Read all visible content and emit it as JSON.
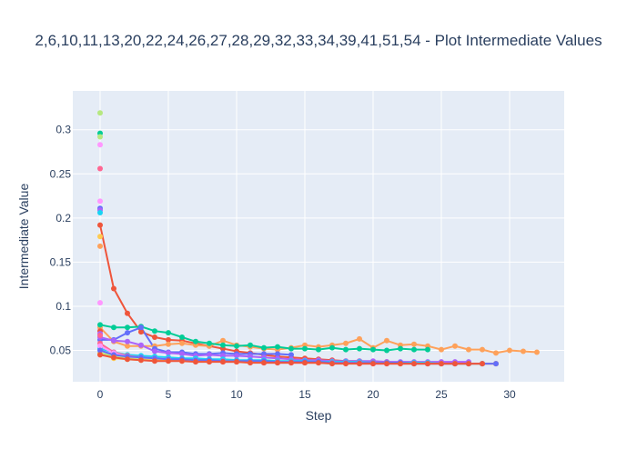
{
  "chart_data": {
    "type": "line",
    "title": "2,6,10,11,13,20,22,24,26,27,28,29,32,33,34,39,41,51,54 - Plot Intermediate Values",
    "xlabel": "Step",
    "ylabel": "Intermediate Value",
    "xlim": [
      -2.0,
      34.0
    ],
    "ylim": [
      0.0145,
      0.344
    ],
    "xticks": [
      0,
      5,
      10,
      15,
      20,
      25,
      30
    ],
    "yticks": [
      0.05,
      0.1,
      0.15,
      0.2,
      0.25,
      0.3
    ],
    "grid": true,
    "legend": "none",
    "series": [
      {
        "color": "#ef553b",
        "x": [
          0,
          1,
          2,
          3,
          4,
          5,
          6,
          7,
          8,
          9,
          10,
          11,
          12,
          13,
          14,
          15,
          16,
          17,
          18,
          19,
          20,
          21,
          22,
          23,
          24,
          25,
          26,
          27,
          28,
          29
        ],
        "y": [
          0.192,
          0.12,
          0.092,
          0.071,
          0.065,
          0.062,
          0.061,
          0.058,
          0.055,
          0.052,
          0.049,
          0.047,
          0.045,
          0.043,
          0.042,
          0.041,
          0.04,
          0.039,
          0.038,
          0.038,
          0.037,
          0.037,
          0.036,
          0.036,
          0.036,
          0.035,
          0.035,
          0.035,
          0.035,
          0.035
        ]
      },
      {
        "color": "#fea15a",
        "x": [
          0,
          1,
          2,
          3,
          4,
          5,
          6,
          7,
          8,
          9,
          10,
          11,
          12,
          13,
          14,
          15,
          16,
          17,
          18,
          19,
          20,
          21,
          22,
          23,
          24,
          25,
          26,
          27,
          28,
          29,
          30,
          31,
          32
        ],
        "y": [
          0.076,
          0.06,
          0.055,
          0.055,
          0.055,
          0.057,
          0.058,
          0.056,
          0.055,
          0.061,
          0.056,
          0.054,
          0.052,
          0.051,
          0.053,
          0.056,
          0.054,
          0.056,
          0.058,
          0.063,
          0.053,
          0.061,
          0.056,
          0.057,
          0.055,
          0.051,
          0.055,
          0.051,
          0.051,
          0.047,
          0.05,
          0.049,
          0.048
        ]
      },
      {
        "color": "#00cc96",
        "x": [
          0,
          1,
          2,
          3,
          4,
          5,
          6,
          7,
          8,
          9,
          10,
          11,
          12,
          13,
          14,
          15,
          16,
          17,
          18,
          19,
          20,
          21,
          22,
          23,
          24
        ],
        "y": [
          0.079,
          0.076,
          0.076,
          0.077,
          0.072,
          0.07,
          0.065,
          0.06,
          0.058,
          0.056,
          0.055,
          0.056,
          0.053,
          0.054,
          0.052,
          0.052,
          0.051,
          0.053,
          0.051,
          0.052,
          0.051,
          0.05,
          0.052,
          0.051,
          0.051
        ]
      },
      {
        "color": "#636efa",
        "x": [
          0,
          1,
          2,
          3,
          4,
          5,
          6,
          7,
          8,
          9,
          10,
          11,
          12,
          13,
          14
        ],
        "y": [
          0.062,
          0.062,
          0.07,
          0.076,
          0.052,
          0.048,
          0.048,
          0.046,
          0.046,
          0.047,
          0.046,
          0.046,
          0.046,
          0.046,
          0.045
        ]
      },
      {
        "color": "#ab63fa",
        "x": [
          0,
          1,
          2,
          3,
          4,
          5,
          6,
          7,
          8,
          9,
          10,
          11,
          12,
          13,
          14,
          15,
          16,
          17,
          18,
          19,
          20,
          21,
          22,
          23,
          24,
          25,
          26,
          27
        ],
        "y": [
          0.065,
          0.061,
          0.06,
          0.056,
          0.049,
          0.047,
          0.046,
          0.044,
          0.045,
          0.044,
          0.044,
          0.043,
          0.042,
          0.041,
          0.04,
          0.039,
          0.039,
          0.038,
          0.038,
          0.038,
          0.038,
          0.037,
          0.037,
          0.037,
          0.037,
          0.037,
          0.037,
          0.037
        ]
      },
      {
        "color": "#19d3f3",
        "x": [
          0,
          1,
          2,
          3,
          4,
          5,
          6,
          7,
          8,
          9,
          10,
          11,
          12,
          13,
          14,
          15,
          16,
          17,
          18,
          19,
          20,
          21,
          22,
          23,
          24,
          25,
          26,
          27,
          28
        ],
        "y": [
          0.052,
          0.048,
          0.045,
          0.044,
          0.043,
          0.042,
          0.041,
          0.041,
          0.04,
          0.04,
          0.039,
          0.039,
          0.039,
          0.038,
          0.038,
          0.038,
          0.037,
          0.037,
          0.037,
          0.037,
          0.036,
          0.036,
          0.036,
          0.036,
          0.036,
          0.035,
          0.035,
          0.035,
          0.035
        ]
      },
      {
        "color": "#ff6692",
        "x": [
          0,
          1,
          2,
          3,
          4,
          5,
          6,
          7,
          8,
          9,
          10,
          11,
          12,
          13,
          14,
          15,
          16,
          17,
          18,
          19,
          20,
          21,
          22,
          23,
          24,
          25,
          26,
          27
        ],
        "y": [
          0.058,
          0.048,
          0.044,
          0.042,
          0.041,
          0.04,
          0.039,
          0.038,
          0.038,
          0.037,
          0.037,
          0.037,
          0.036,
          0.036,
          0.036,
          0.036,
          0.036,
          0.036,
          0.036,
          0.035,
          0.035,
          0.035,
          0.035,
          0.035,
          0.035,
          0.035,
          0.035,
          0.035
        ]
      },
      {
        "color": "#b6e880",
        "x": [
          0,
          1,
          2,
          3,
          4,
          5,
          6,
          7,
          8,
          9,
          10,
          11,
          12,
          13,
          14,
          15,
          16,
          17,
          18,
          19,
          20,
          21,
          22,
          23,
          24,
          25,
          26,
          27,
          28
        ],
        "y": [
          0.047,
          0.044,
          0.042,
          0.041,
          0.04,
          0.04,
          0.039,
          0.039,
          0.038,
          0.038,
          0.038,
          0.037,
          0.037,
          0.037,
          0.037,
          0.036,
          0.036,
          0.036,
          0.036,
          0.036,
          0.036,
          0.035,
          0.035,
          0.035,
          0.035,
          0.035,
          0.035,
          0.035,
          0.035
        ]
      },
      {
        "color": "#ff97ff",
        "x": [
          0,
          1,
          2,
          3,
          4,
          5,
          6,
          7,
          8,
          9,
          10,
          11,
          12,
          13,
          14,
          15,
          16,
          17,
          18,
          19,
          20,
          21,
          22,
          23,
          24,
          25,
          26
        ],
        "y": [
          0.055,
          0.047,
          0.043,
          0.042,
          0.041,
          0.04,
          0.039,
          0.039,
          0.038,
          0.038,
          0.037,
          0.037,
          0.037,
          0.037,
          0.036,
          0.036,
          0.036,
          0.036,
          0.036,
          0.036,
          0.035,
          0.035,
          0.035,
          0.035,
          0.035,
          0.035,
          0.035
        ]
      },
      {
        "color": "#fecb52",
        "x": [
          0,
          1,
          2,
          3,
          4,
          5,
          6,
          7,
          8,
          9,
          10,
          11,
          12,
          13,
          14,
          15,
          16,
          17,
          18,
          19,
          20,
          21,
          22,
          23,
          24,
          25,
          26,
          27,
          28,
          29
        ],
        "y": [
          0.046,
          0.041,
          0.04,
          0.039,
          0.039,
          0.039,
          0.038,
          0.038,
          0.038,
          0.038,
          0.037,
          0.037,
          0.037,
          0.037,
          0.037,
          0.036,
          0.036,
          0.036,
          0.036,
          0.036,
          0.036,
          0.036,
          0.035,
          0.035,
          0.035,
          0.035,
          0.035,
          0.035,
          0.035,
          0.035
        ]
      },
      {
        "color": "#636efa",
        "x": [
          0,
          1,
          2,
          3,
          4,
          5,
          6,
          7,
          8,
          9,
          10,
          11,
          12,
          13,
          14,
          15,
          16,
          17,
          18,
          19,
          20,
          21,
          22,
          23,
          24,
          25,
          26,
          27,
          28,
          29
        ],
        "y": [
          0.05,
          0.045,
          0.043,
          0.042,
          0.041,
          0.04,
          0.04,
          0.039,
          0.039,
          0.038,
          0.038,
          0.038,
          0.038,
          0.037,
          0.037,
          0.037,
          0.037,
          0.036,
          0.036,
          0.036,
          0.036,
          0.036,
          0.036,
          0.035,
          0.035,
          0.035,
          0.035,
          0.035,
          0.035,
          0.035
        ]
      },
      {
        "color": "#ef553b",
        "x": [
          0,
          1,
          2,
          3,
          4,
          5,
          6,
          7,
          8,
          9,
          10,
          11,
          12,
          13,
          14,
          15,
          16,
          17,
          18,
          19,
          20,
          21,
          22,
          23,
          24,
          25,
          26,
          27,
          28
        ],
        "y": [
          0.045,
          0.042,
          0.04,
          0.039,
          0.038,
          0.038,
          0.038,
          0.037,
          0.037,
          0.037,
          0.037,
          0.036,
          0.036,
          0.036,
          0.036,
          0.036,
          0.036,
          0.035,
          0.035,
          0.035,
          0.035,
          0.035,
          0.035,
          0.035,
          0.035,
          0.035,
          0.035,
          0.035,
          0.035
        ]
      }
    ],
    "initial_points": [
      {
        "y": 0.319,
        "color": "#b6e880"
      },
      {
        "y": 0.296,
        "color": "#00cc96"
      },
      {
        "y": 0.292,
        "color": "#b6e880"
      },
      {
        "y": 0.283,
        "color": "#ff97ff"
      },
      {
        "y": 0.256,
        "color": "#ff6692"
      },
      {
        "y": 0.219,
        "color": "#ff97ff"
      },
      {
        "y": 0.211,
        "color": "#636efa"
      },
      {
        "y": 0.209,
        "color": "#ab63fa"
      },
      {
        "y": 0.206,
        "color": "#19d3f3"
      },
      {
        "y": 0.179,
        "color": "#fecb52"
      },
      {
        "y": 0.168,
        "color": "#fea15a"
      },
      {
        "y": 0.104,
        "color": "#ff97ff"
      },
      {
        "y": 0.072,
        "color": "#ef553b"
      },
      {
        "y": 0.069,
        "color": "#ab63fa"
      },
      {
        "y": 0.067,
        "color": "#ff6692"
      }
    ]
  }
}
